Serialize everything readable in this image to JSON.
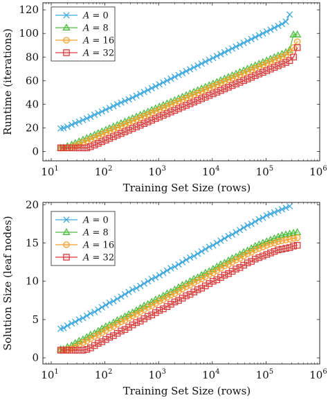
{
  "chart_data": [
    {
      "type": "line",
      "xscale": "log",
      "x": [
        15,
        17,
        20,
        24,
        28,
        33,
        39,
        46,
        54,
        64,
        75,
        88,
        104,
        122,
        144,
        170,
        200,
        236,
        278,
        327,
        386,
        455,
        536,
        632,
        745,
        878,
        1035,
        1219,
        1437,
        1694,
        1996,
        2353,
        2773,
        3268,
        3852,
        4540,
        5351,
        6306,
        7432,
        8760,
        10324,
        12168,
        14341,
        16902,
        19921,
        23478,
        27671,
        32613,
        38437,
        45301,
        53391,
        62925,
        74162,
        87406,
        103015,
        121411,
        143093,
        168646,
        198762,
        234256,
        276089,
        325393,
        383500
      ],
      "xlabel": "Training Set Size (rows)",
      "ylabel": "Runtime (iterations)",
      "xticks": [
        "10",
        "10",
        "10",
        "10",
        "10",
        "10"
      ],
      "xtick_exponents": [
        "1",
        "2",
        "3",
        "4",
        "5",
        "6"
      ],
      "xtick_values": [
        10,
        100,
        1000,
        10000,
        100000,
        1000000
      ],
      "xlim": [
        7,
        1000000
      ],
      "ylim": [
        -8,
        126
      ],
      "yticks": [
        "0",
        "20",
        "40",
        "60",
        "80",
        "100",
        "120"
      ],
      "ytick_values": [
        0,
        20,
        40,
        60,
        80,
        100,
        120
      ],
      "grid": false,
      "legend_position": "top-left",
      "series": [
        {
          "name": "A = 0",
          "label_var": "A",
          "label_value": " = 0",
          "color": "#3ea8dc",
          "marker": "x",
          "values": [
            19.4,
            19.8,
            21.0,
            22.6,
            24.0,
            25.2,
            26.6,
            28.0,
            29.4,
            31.0,
            32.4,
            33.8,
            35.4,
            36.8,
            38.4,
            40.0,
            41.4,
            42.8,
            44.2,
            45.6,
            47.2,
            48.8,
            50.4,
            52.0,
            53.6,
            55.2,
            56.8,
            58.4,
            60.0,
            61.6,
            63.2,
            64.8,
            66.4,
            68.0,
            69.6,
            71.2,
            72.8,
            74.4,
            76.0,
            77.6,
            79.2,
            80.8,
            82.4,
            84.0,
            85.6,
            87.2,
            88.8,
            90.4,
            92.0,
            93.6,
            95.2,
            96.8,
            98.4,
            100.0,
            101.6,
            103.2,
            104.8,
            106.4,
            108.0,
            110.0,
            116.0,
            null,
            null
          ]
        },
        {
          "name": "A = 8",
          "label_var": "A",
          "label_value": " = 8",
          "color": "#4cbb3c",
          "marker": "triangle",
          "values": [
            3.0,
            3.2,
            4.4,
            5.6,
            7.0,
            8.4,
            9.8,
            11.2,
            12.6,
            14.0,
            15.4,
            16.8,
            18.2,
            19.6,
            21.0,
            22.4,
            23.8,
            25.2,
            26.6,
            28.0,
            29.4,
            30.8,
            32.2,
            33.6,
            35.0,
            36.4,
            37.8,
            39.2,
            40.6,
            42.0,
            43.4,
            44.8,
            46.2,
            47.6,
            49.0,
            50.4,
            51.8,
            53.2,
            54.6,
            56.0,
            57.4,
            58.8,
            60.2,
            61.6,
            63.0,
            64.4,
            65.8,
            67.2,
            68.6,
            70.0,
            71.4,
            72.8,
            74.2,
            75.6,
            77.0,
            78.4,
            79.8,
            81.2,
            82.6,
            84.0,
            86.0,
            99.0,
            99.0
          ]
        },
        {
          "name": "A = 16",
          "label_var": "A",
          "label_value": " = 16",
          "color": "#f5a02d",
          "marker": "circle",
          "values": [
            3.0,
            3.0,
            3.2,
            3.6,
            4.6,
            6.0,
            7.4,
            8.8,
            10.2,
            11.6,
            13.0,
            14.4,
            15.8,
            17.2,
            18.6,
            20.0,
            21.4,
            22.8,
            24.2,
            25.6,
            27.0,
            28.4,
            29.8,
            31.2,
            32.6,
            34.0,
            35.4,
            36.8,
            38.2,
            39.6,
            41.0,
            42.4,
            43.8,
            45.2,
            46.6,
            48.0,
            49.4,
            50.8,
            52.2,
            53.6,
            55.0,
            56.4,
            57.8,
            59.2,
            60.6,
            62.0,
            63.4,
            64.8,
            66.2,
            67.6,
            69.0,
            70.4,
            71.8,
            73.2,
            74.6,
            76.0,
            77.4,
            78.8,
            80.2,
            81.6,
            84.0,
            88.0,
            93.0
          ]
        },
        {
          "name": "A = 32",
          "label_var": "A",
          "label_value": " = 32",
          "color": "#d63a3a",
          "marker": "square",
          "values": [
            3.0,
            3.0,
            3.0,
            3.0,
            3.0,
            3.0,
            3.0,
            3.0,
            4.0,
            5.4,
            6.8,
            8.2,
            9.6,
            11.0,
            12.4,
            13.8,
            15.2,
            16.6,
            18.0,
            19.4,
            20.8,
            22.2,
            23.6,
            25.0,
            26.4,
            27.8,
            29.2,
            30.6,
            32.0,
            33.4,
            34.8,
            36.2,
            37.6,
            39.0,
            40.4,
            41.8,
            43.2,
            44.6,
            46.0,
            47.4,
            48.8,
            50.2,
            51.6,
            53.0,
            54.4,
            55.8,
            57.2,
            58.6,
            60.0,
            61.4,
            62.8,
            64.2,
            65.6,
            67.0,
            68.4,
            69.8,
            71.2,
            72.6,
            74.0,
            75.4,
            77.0,
            80.0,
            88.0
          ]
        }
      ]
    },
    {
      "type": "line",
      "xscale": "log",
      "x": [
        15,
        17,
        20,
        24,
        28,
        33,
        39,
        46,
        54,
        64,
        75,
        88,
        104,
        122,
        144,
        170,
        200,
        236,
        278,
        327,
        386,
        455,
        536,
        632,
        745,
        878,
        1035,
        1219,
        1437,
        1694,
        1996,
        2353,
        2773,
        3268,
        3852,
        4540,
        5351,
        6306,
        7432,
        8760,
        10324,
        12168,
        14341,
        16902,
        19921,
        23478,
        27671,
        32613,
        38437,
        45301,
        53391,
        62925,
        74162,
        87406,
        103015,
        121411,
        143093,
        168646,
        198762,
        234256,
        276089,
        325393,
        383500
      ],
      "xlabel": "Training Set Size (rows)",
      "ylabel": "Solution Size (leaf nodes)",
      "xticks": [
        "10",
        "10",
        "10",
        "10",
        "10",
        "10"
      ],
      "xtick_exponents": [
        "1",
        "2",
        "3",
        "4",
        "5",
        "6"
      ],
      "xtick_values": [
        10,
        100,
        1000,
        10000,
        100000,
        1000000
      ],
      "xlim": [
        7,
        1000000
      ],
      "ylim": [
        -0.8,
        20.3
      ],
      "yticks": [
        "0",
        "5",
        "10",
        "15",
        "20"
      ],
      "ytick_values": [
        0,
        5,
        10,
        15,
        20
      ],
      "grid": false,
      "legend_position": "top-left",
      "series": [
        {
          "name": "A = 0",
          "label_var": "A",
          "label_value": " = 0",
          "color": "#3ea8dc",
          "marker": "x",
          "values": [
            3.8,
            3.9,
            4.2,
            4.5,
            4.7,
            5.0,
            5.2,
            5.5,
            5.8,
            6.0,
            6.3,
            6.6,
            6.9,
            7.2,
            7.4,
            7.7,
            8.0,
            8.3,
            8.6,
            8.9,
            9.1,
            9.4,
            9.7,
            10.0,
            10.3,
            10.5,
            10.8,
            11.1,
            11.4,
            11.7,
            11.9,
            12.2,
            12.5,
            12.8,
            13.1,
            13.3,
            13.6,
            13.9,
            14.2,
            14.5,
            14.7,
            15.0,
            15.3,
            15.6,
            15.9,
            16.1,
            16.4,
            16.7,
            17.0,
            17.3,
            17.5,
            17.8,
            18.1,
            18.3,
            18.6,
            18.8,
            19.0,
            19.2,
            19.4,
            19.6,
            19.8,
            null,
            null
          ]
        },
        {
          "name": "A = 8",
          "label_var": "A",
          "label_value": " = 8",
          "color": "#4cbb3c",
          "marker": "triangle",
          "values": [
            1.1,
            1.1,
            1.4,
            1.6,
            1.9,
            2.2,
            2.4,
            2.7,
            3.0,
            3.2,
            3.5,
            3.8,
            4.1,
            4.3,
            4.6,
            4.9,
            5.1,
            5.4,
            5.7,
            5.9,
            6.2,
            6.5,
            6.8,
            7.0,
            7.3,
            7.6,
            7.8,
            8.1,
            8.4,
            8.6,
            8.9,
            9.2,
            9.5,
            9.7,
            10.0,
            10.3,
            10.5,
            10.8,
            11.1,
            11.3,
            11.6,
            11.9,
            12.2,
            12.4,
            12.7,
            13.0,
            13.2,
            13.5,
            13.8,
            14.0,
            14.3,
            14.6,
            14.8,
            15.0,
            15.2,
            15.4,
            15.6,
            15.8,
            16.0,
            16.1,
            16.2,
            16.3,
            16.4
          ]
        },
        {
          "name": "A = 16",
          "label_var": "A",
          "label_value": " = 16",
          "color": "#f5a02d",
          "marker": "circle",
          "values": [
            1.0,
            1.0,
            1.1,
            1.2,
            1.4,
            1.7,
            2.0,
            2.2,
            2.5,
            2.8,
            3.0,
            3.3,
            3.6,
            3.9,
            4.1,
            4.4,
            4.7,
            4.9,
            5.2,
            5.5,
            5.7,
            6.0,
            6.3,
            6.6,
            6.8,
            7.1,
            7.4,
            7.6,
            7.9,
            8.2,
            8.4,
            8.7,
            9.0,
            9.3,
            9.5,
            9.8,
            10.1,
            10.3,
            10.6,
            10.9,
            11.1,
            11.4,
            11.7,
            12.0,
            12.2,
            12.5,
            12.8,
            13.0,
            13.3,
            13.6,
            13.8,
            14.1,
            14.3,
            14.5,
            14.7,
            14.9,
            15.0,
            15.2,
            15.3,
            15.4,
            15.5,
            15.6,
            15.7
          ]
        },
        {
          "name": "A = 32",
          "label_var": "A",
          "label_value": " = 32",
          "color": "#d63a3a",
          "marker": "square",
          "values": [
            1.0,
            1.0,
            1.0,
            1.0,
            1.0,
            1.0,
            1.0,
            1.1,
            1.3,
            1.6,
            1.9,
            2.1,
            2.4,
            2.7,
            2.9,
            3.2,
            3.5,
            3.7,
            4.0,
            4.3,
            4.6,
            4.8,
            5.1,
            5.4,
            5.6,
            5.9,
            6.2,
            6.4,
            6.7,
            7.0,
            7.3,
            7.5,
            7.8,
            8.1,
            8.3,
            8.6,
            8.9,
            9.1,
            9.4,
            9.7,
            10.0,
            10.2,
            10.5,
            10.8,
            11.0,
            11.3,
            11.6,
            11.8,
            12.1,
            12.4,
            12.6,
            12.9,
            13.1,
            13.3,
            13.5,
            13.7,
            13.9,
            14.1,
            14.2,
            14.3,
            14.4,
            14.6,
            14.7
          ]
        }
      ]
    }
  ]
}
